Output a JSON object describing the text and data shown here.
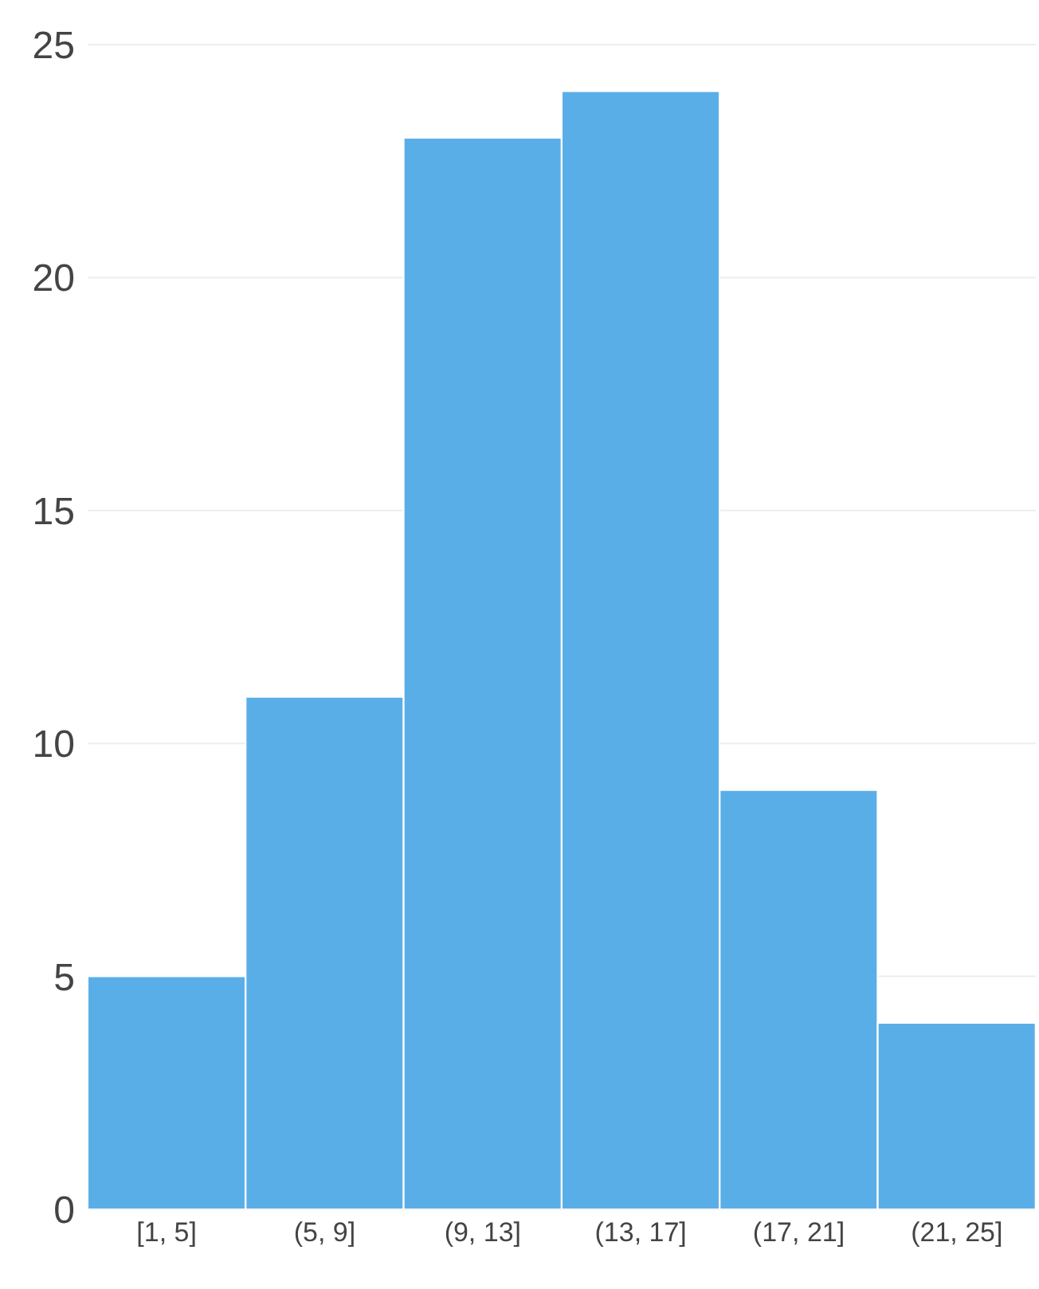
{
  "chart_data": {
    "type": "bar",
    "categories": [
      "[1, 5]",
      "(5, 9]",
      "(9, 13]",
      "(13, 17]",
      "(17, 21]",
      "(21, 25]"
    ],
    "values": [
      5,
      11,
      23,
      24,
      9,
      4
    ],
    "color": "#5aaee8",
    "ylim": [
      0,
      25
    ],
    "yticks": [
      0,
      5,
      10,
      15,
      20,
      25
    ],
    "grid": "y"
  }
}
